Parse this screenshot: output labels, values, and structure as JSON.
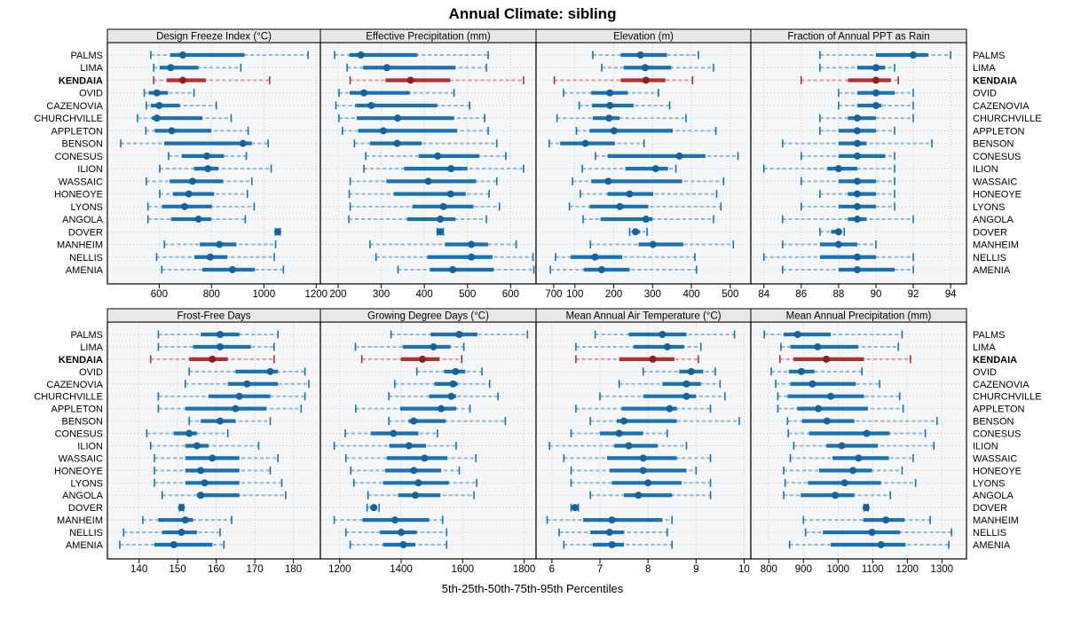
{
  "title": "Annual Climate: sibling",
  "caption": "5th-25th-50th-75th-95th Percentiles",
  "colors": {
    "blue": "#1a72b2",
    "blue_light": "#8ab9dc",
    "blue_dot": "#14639c",
    "red": "#b03032",
    "red_light": "#dc9b9b",
    "red_dot": "#8e1f21",
    "panel_bg": "#f4f6f8",
    "header_bg": "#e8e8e8",
    "grid": "#c8cdd1",
    "border": "#000000",
    "text": "#000000"
  },
  "chart_data": {
    "type": "dotplot",
    "title": "Annual Climate: sibling",
    "xlabel": "5th-25th-50th-75th-95th Percentiles",
    "percentiles": [
      5,
      25,
      50,
      75,
      95
    ],
    "highlight": "KENDAIA",
    "grid": true,
    "stations": [
      "PALMS",
      "LIMA",
      "KENDAIA",
      "OVID",
      "CAZENOVIA",
      "CHURCHVILLE",
      "APPLETON",
      "BENSON",
      "CONESUS",
      "ILION",
      "WASSAIC",
      "HONEOYE",
      "LYONS",
      "ANGOLA",
      "DOVER",
      "MANHEIM",
      "NELLIS",
      "AMENIA"
    ],
    "panels": [
      {
        "title": "Design Freeze Index (°C)",
        "row": 0,
        "col": 0,
        "xlim": [
          402,
          1216
        ],
        "ticks": [
          600,
          800,
          1000,
          1200
        ],
        "values": [
          [
            568,
            642,
            690,
            926,
            1169
          ],
          [
            579,
            602,
            644,
            750,
            912
          ],
          [
            579,
            628,
            690,
            778,
            1022
          ],
          [
            543,
            560,
            591,
            634,
            733
          ],
          [
            551,
            568,
            600,
            679,
            818
          ],
          [
            517,
            572,
            591,
            765,
            875
          ],
          [
            549,
            583,
            648,
            799,
            940
          ],
          [
            453,
            619,
            920,
            954,
            1016
          ],
          [
            636,
            687,
            782,
            848,
            933
          ],
          [
            602,
            733,
            786,
            826,
            1028
          ],
          [
            551,
            640,
            727,
            844,
            954
          ],
          [
            602,
            653,
            713,
            810,
            937
          ],
          [
            557,
            611,
            697,
            801,
            963
          ],
          [
            557,
            645,
            750,
            799,
            929
          ],
          [
            1044,
            1049,
            1053,
            1058,
            1062
          ],
          [
            620,
            755,
            830,
            895,
            1045
          ],
          [
            590,
            735,
            795,
            860,
            1040
          ],
          [
            610,
            765,
            880,
            965,
            1075
          ]
        ]
      },
      {
        "title": "Effective Precipitation (mm)",
        "row": 0,
        "col": 1,
        "xlim": [
          159,
          659
        ],
        "ticks": [
          200,
          300,
          400,
          500,
          600,
          700
        ],
        "values": [
          [
            192,
            226,
            253,
            384,
            548
          ],
          [
            221,
            258,
            313,
            472,
            544
          ],
          [
            228,
            310,
            368,
            460,
            630
          ],
          [
            202,
            227,
            260,
            366,
            469
          ],
          [
            195,
            240,
            277,
            430,
            505
          ],
          [
            202,
            243,
            338,
            469,
            540
          ],
          [
            210,
            247,
            305,
            476,
            548
          ],
          [
            238,
            274,
            337,
            394,
            568
          ],
          [
            264,
            387,
            431,
            527,
            589
          ],
          [
            260,
            353,
            462,
            500,
            630
          ],
          [
            228,
            312,
            409,
            520,
            568
          ],
          [
            226,
            329,
            461,
            496,
            550
          ],
          [
            228,
            372,
            444,
            514,
            574
          ],
          [
            225,
            360,
            437,
            472,
            544
          ],
          [
            430,
            434,
            437,
            440,
            444
          ],
          [
            274,
            448,
            509,
            548,
            613
          ],
          [
            288,
            407,
            509,
            558,
            652
          ],
          [
            339,
            413,
            466,
            561,
            654
          ]
        ]
      },
      {
        "title": "Elevation (m)",
        "row": 0,
        "col": 2,
        "xlim": [
          0,
          553
        ],
        "ticks": [
          100,
          200,
          300,
          400,
          500
        ],
        "values": [
          [
            146,
            218,
            269,
            337,
            418
          ],
          [
            169,
            226,
            281,
            348,
            457
          ],
          [
            47,
            218,
            283,
            333,
            403
          ],
          [
            71,
            142,
            190,
            236,
            315
          ],
          [
            111,
            144,
            190,
            251,
            344
          ],
          [
            54,
            146,
            188,
            215,
            386
          ],
          [
            104,
            138,
            201,
            352,
            463
          ],
          [
            34,
            62,
            127,
            203,
            278
          ],
          [
            153,
            184,
            369,
            436,
            520
          ],
          [
            119,
            230,
            308,
            340,
            360
          ],
          [
            94,
            142,
            186,
            376,
            483
          ],
          [
            114,
            184,
            241,
            302,
            465
          ],
          [
            86,
            138,
            216,
            289,
            476
          ],
          [
            121,
            166,
            283,
            300,
            457
          ],
          [
            241,
            249,
            256,
            268,
            286
          ],
          [
            140,
            264,
            301,
            379,
            508
          ],
          [
            50,
            89,
            152,
            222,
            409
          ],
          [
            37,
            123,
            169,
            241,
            413
          ]
        ]
      },
      {
        "title": "Fraction of Annual PPT as Rain",
        "row": 0,
        "col": 3,
        "xlim": [
          83.3,
          94.85
        ],
        "ticks": [
          84,
          86,
          88,
          90,
          92,
          94
        ],
        "values": [
          [
            87,
            90,
            92,
            92.8,
            94
          ],
          [
            87,
            89,
            90,
            90.5,
            91
          ],
          [
            86,
            88.5,
            90,
            90.8,
            91.2
          ],
          [
            88,
            89,
            90,
            91,
            92
          ],
          [
            88,
            89,
            90,
            90.3,
            92
          ],
          [
            87,
            88.5,
            89,
            90,
            92
          ],
          [
            87,
            88,
            89,
            90,
            91
          ],
          [
            85,
            88,
            89,
            89.5,
            93
          ],
          [
            86,
            88,
            89,
            90.5,
            91
          ],
          [
            84,
            87.4,
            88,
            89,
            91
          ],
          [
            86,
            88,
            89,
            90,
            91
          ],
          [
            87,
            88.5,
            89,
            90,
            91
          ],
          [
            86,
            88,
            89,
            90,
            91
          ],
          [
            85,
            88.5,
            89,
            89.5,
            92
          ],
          [
            87,
            87.6,
            88,
            88.1,
            88.3
          ],
          [
            85,
            87,
            88,
            89,
            90
          ],
          [
            84,
            87,
            89,
            90,
            92
          ],
          [
            85,
            88,
            89,
            91,
            92
          ]
        ]
      },
      {
        "title": "Frost-Free Days",
        "row": 1,
        "col": 0,
        "xlim": [
          131.8,
          187
        ],
        "ticks": [
          140,
          150,
          160,
          170,
          180
        ],
        "values": [
          [
            145,
            156,
            161,
            166,
            176
          ],
          [
            145,
            154,
            161,
            169,
            175
          ],
          [
            143,
            153,
            159,
            163,
            175
          ],
          [
            153,
            165,
            174,
            176,
            183
          ],
          [
            152,
            163,
            168,
            176,
            184
          ],
          [
            145,
            158,
            166,
            174,
            183
          ],
          [
            145,
            152,
            165,
            173,
            182
          ],
          [
            153,
            156,
            161,
            165,
            174
          ],
          [
            142,
            149,
            153,
            155,
            163
          ],
          [
            143,
            152,
            155,
            158,
            171
          ],
          [
            144,
            152,
            159,
            166,
            176
          ],
          [
            144,
            152,
            156,
            166,
            174
          ],
          [
            144,
            152,
            157,
            166,
            177
          ],
          [
            146,
            155,
            156,
            166,
            178
          ],
          [
            150.5,
            150.8,
            151,
            151.2,
            151.5
          ],
          [
            141,
            145,
            152,
            154,
            164
          ],
          [
            136,
            146,
            151,
            155,
            161
          ],
          [
            135,
            144,
            149,
            159,
            162
          ]
        ]
      },
      {
        "title": "Growing Degree Days (°C)",
        "row": 1,
        "col": 1,
        "xlim": [
          1137,
          1839
        ],
        "ticks": [
          1200,
          1400,
          1600,
          1800
        ],
        "values": [
          [
            1367,
            1496,
            1589,
            1648,
            1811
          ],
          [
            1251,
            1405,
            1505,
            1560,
            1604
          ],
          [
            1272,
            1399,
            1469,
            1525,
            1597
          ],
          [
            1451,
            1540,
            1577,
            1609,
            1663
          ],
          [
            1379,
            1508,
            1569,
            1584,
            1688
          ],
          [
            1360,
            1491,
            1563,
            1579,
            1715
          ],
          [
            1252,
            1397,
            1530,
            1579,
            1624
          ],
          [
            1360,
            1424,
            1441,
            1545,
            1739
          ],
          [
            1218,
            1301,
            1375,
            1456,
            1518
          ],
          [
            1182,
            1361,
            1425,
            1481,
            1579
          ],
          [
            1220,
            1353,
            1476,
            1550,
            1643
          ],
          [
            1236,
            1348,
            1441,
            1530,
            1589
          ],
          [
            1246,
            1341,
            1456,
            1555,
            1646
          ],
          [
            1292,
            1390,
            1446,
            1528,
            1637
          ],
          [
            1289,
            1300,
            1311,
            1317,
            1328
          ],
          [
            1182,
            1274,
            1380,
            1491,
            1535
          ],
          [
            1220,
            1331,
            1400,
            1451,
            1548
          ],
          [
            1234,
            1341,
            1407,
            1446,
            1548
          ]
        ]
      },
      {
        "title": "Mean Annual Air Temperature (°C)",
        "row": 1,
        "col": 2,
        "xlim": [
          5.67,
          10.14
        ],
        "ticks": [
          6,
          7,
          8,
          9,
          10
        ],
        "values": [
          [
            6.9,
            7.6,
            8.3,
            8.8,
            9.8
          ],
          [
            6.5,
            7.7,
            8.4,
            8.75,
            9.1
          ],
          [
            6.5,
            7.4,
            8.1,
            8.55,
            9.05
          ],
          [
            7.9,
            8.65,
            8.9,
            9.15,
            9.4
          ],
          [
            7.4,
            8.3,
            8.8,
            9.1,
            9.5
          ],
          [
            7.0,
            7.9,
            8.8,
            9.0,
            9.6
          ],
          [
            6.5,
            7.45,
            8.45,
            8.6,
            9.3
          ],
          [
            6.8,
            7.35,
            7.5,
            8.6,
            9.9
          ],
          [
            6.4,
            7.0,
            7.4,
            7.9,
            8.4
          ],
          [
            5.95,
            7.3,
            7.6,
            8.2,
            8.8
          ],
          [
            6.25,
            7.15,
            7.9,
            8.6,
            9.3
          ],
          [
            6.4,
            7.2,
            7.9,
            8.8,
            9.0
          ],
          [
            6.4,
            7.25,
            8.0,
            8.7,
            9.3
          ],
          [
            6.8,
            7.5,
            7.8,
            8.5,
            9.3
          ],
          [
            6.4,
            6.45,
            6.48,
            6.52,
            6.55
          ],
          [
            5.9,
            6.65,
            7.25,
            8.3,
            8.5
          ],
          [
            6.15,
            6.8,
            7.2,
            7.5,
            8.4
          ],
          [
            6.25,
            6.85,
            7.25,
            7.5,
            8.5
          ]
        ]
      },
      {
        "title": "Mean Annual Precipitation (mm)",
        "row": 1,
        "col": 3,
        "xlim": [
          748,
          1371
        ],
        "ticks": [
          800,
          900,
          1000,
          1100,
          1200,
          1300
        ],
        "values": [
          [
            787,
            843,
            883,
            979,
            1185
          ],
          [
            835,
            862,
            941,
            1058,
            1174
          ],
          [
            832,
            871,
            966,
            1075,
            1209
          ],
          [
            807,
            858,
            894,
            932,
            1069
          ],
          [
            820,
            862,
            926,
            1051,
            1120
          ],
          [
            826,
            854,
            979,
            1075,
            1178
          ],
          [
            826,
            882,
            943,
            1086,
            1188
          ],
          [
            854,
            896,
            968,
            1047,
            1286
          ],
          [
            856,
            916,
            1083,
            1149,
            1252
          ],
          [
            872,
            966,
            1011,
            1115,
            1277
          ],
          [
            862,
            984,
            1059,
            1147,
            1217
          ],
          [
            843,
            945,
            1043,
            1098,
            1185
          ],
          [
            847,
            913,
            1019,
            1124,
            1224
          ],
          [
            843,
            892,
            992,
            1047,
            1151
          ],
          [
            1075,
            1078,
            1081,
            1084,
            1087
          ],
          [
            900,
            1073,
            1138,
            1192,
            1266
          ],
          [
            906,
            956,
            1098,
            1179,
            1328
          ],
          [
            860,
            979,
            1124,
            1195,
            1320
          ]
        ]
      }
    ]
  }
}
